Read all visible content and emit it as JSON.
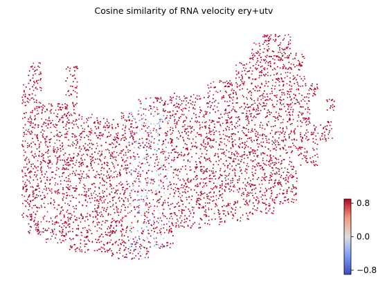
{
  "chart_data": {
    "type": "scatter",
    "title": "Cosine similarity of RNA velocity ery+utv",
    "xlabel": "",
    "ylabel": "",
    "axes_visible": false,
    "grid": false,
    "point_color_default": "#b40426",
    "colormap": "coolwarm",
    "colorbar": {
      "range": [
        -0.9,
        0.9
      ],
      "ticks": [
        0.8,
        0.0,
        -0.8
      ],
      "tick_labels": [
        "0.8",
        "0.0",
        "−0.8"
      ],
      "colors": [
        "#3b4cc0",
        "#7b9ff9",
        "#dddddd",
        "#f49a7b",
        "#b40426"
      ],
      "placement": "bottom-right"
    },
    "values_summary": {
      "dominant_value": 0.9,
      "low_value_band": "central vertical strip with values near -0.8 to 0.2"
    }
  }
}
